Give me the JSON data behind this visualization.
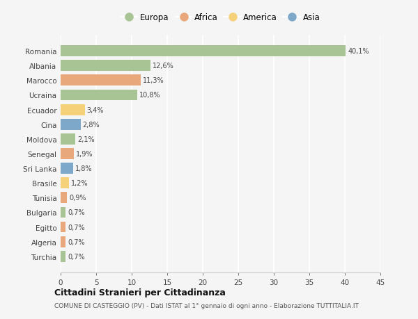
{
  "countries": [
    "Romania",
    "Albania",
    "Marocco",
    "Ucraina",
    "Ecuador",
    "Cina",
    "Moldova",
    "Senegal",
    "Sri Lanka",
    "Brasile",
    "Tunisia",
    "Bulgaria",
    "Egitto",
    "Algeria",
    "Turchia"
  ],
  "values": [
    40.1,
    12.6,
    11.3,
    10.8,
    3.4,
    2.8,
    2.1,
    1.9,
    1.8,
    1.2,
    0.9,
    0.7,
    0.7,
    0.7,
    0.7
  ],
  "labels": [
    "40,1%",
    "12,6%",
    "11,3%",
    "10,8%",
    "3,4%",
    "2,8%",
    "2,1%",
    "1,9%",
    "1,8%",
    "1,2%",
    "0,9%",
    "0,7%",
    "0,7%",
    "0,7%",
    "0,7%"
  ],
  "continents": [
    "Europa",
    "Europa",
    "Africa",
    "Europa",
    "America",
    "Asia",
    "Europa",
    "Africa",
    "Asia",
    "America",
    "Africa",
    "Europa",
    "Africa",
    "Africa",
    "Europa"
  ],
  "colors": {
    "Europa": "#a8c494",
    "Africa": "#e8a87c",
    "America": "#f5d27a",
    "Asia": "#7ea8c9"
  },
  "legend_order": [
    "Europa",
    "Africa",
    "America",
    "Asia"
  ],
  "title": "Cittadini Stranieri per Cittadinanza",
  "subtitle": "COMUNE DI CASTEGGIO (PV) - Dati ISTAT al 1° gennaio di ogni anno - Elaborazione TUTTITALIA.IT",
  "xlim": [
    0,
    45
  ],
  "xticks": [
    0,
    5,
    10,
    15,
    20,
    25,
    30,
    35,
    40,
    45
  ],
  "background_color": "#f5f5f5",
  "grid_color": "#ffffff",
  "bar_height": 0.75
}
